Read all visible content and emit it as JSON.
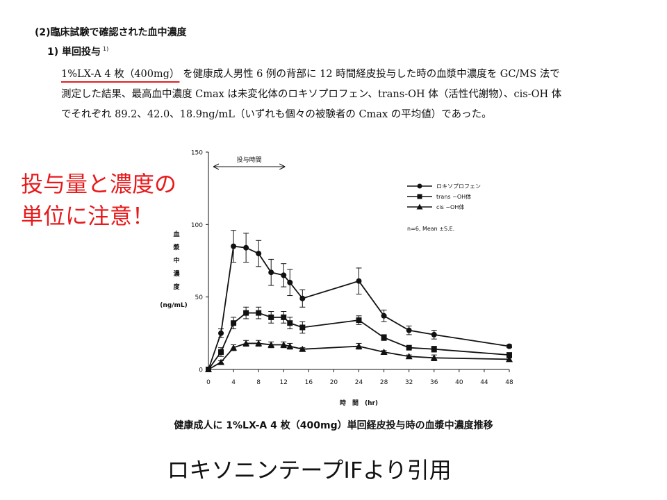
{
  "section_title": "(2)臨床試験で確認された血中濃度",
  "subsection": {
    "label": "1) 単回投与",
    "ref": "1)"
  },
  "paragraph": {
    "line1_highlight": "1%LX-A 4 枚（400mg）",
    "line1_rest": "を健康成人男性 6 例の背部に 12 時間経皮投与した時の血漿中濃度を GC/MS 法で",
    "line2": "測定した結果、最高血中濃度 Cmax は未変化体のロキソプロフェン、trans-OH 体（活性代謝物）、cis-OH 体",
    "line3": "でそれぞれ 89.2、42.0、18.9ng/mL（いずれも個々の被験者の Cmax の平均値）であった。"
  },
  "annotation": {
    "line1": "投与量と濃度の",
    "line2": "単位に注意！"
  },
  "caption": "健康成人に 1%LX-A 4 枚（400mg）単回経皮投与時の血漿中濃度推移",
  "citation": "ロキソニンテープIFより引用",
  "colors": {
    "annotation": "#e8191b",
    "underline": "#e02020",
    "ink": "#111111"
  },
  "chart_data": {
    "type": "line",
    "title": "",
    "xlabel": "時　間　(hr)",
    "ylabel": "血漿中濃度 (ng/mL)",
    "ylabel_chars": [
      "血",
      "漿",
      "中",
      "濃",
      "度"
    ],
    "ylabel_unit": "(ng/mL)",
    "xlim": [
      0,
      48
    ],
    "ylim": [
      0,
      150
    ],
    "x_ticks": [
      0,
      4,
      8,
      12,
      16,
      20,
      24,
      28,
      32,
      36,
      40,
      44,
      48
    ],
    "y_ticks": [
      0,
      50,
      100,
      150
    ],
    "dosing_period": {
      "label": "投与時間",
      "start": 1,
      "end": 12
    },
    "legend_position": "top-right",
    "note": "n=6, Mean ±S.E.",
    "series": [
      {
        "name": "ロキソプロフェン",
        "marker": "circle",
        "x": [
          0,
          2,
          4,
          6,
          8,
          10,
          12,
          13,
          15,
          24,
          28,
          32,
          36,
          48
        ],
        "values": [
          0,
          25,
          85,
          84,
          80,
          67,
          65,
          60,
          49,
          61,
          37,
          27,
          24,
          16
        ],
        "errors": [
          0,
          3,
          11,
          10,
          9,
          9,
          8,
          9,
          6,
          9,
          4,
          3,
          3,
          1
        ]
      },
      {
        "name": "trans −OH体",
        "marker": "square",
        "x": [
          0,
          2,
          4,
          6,
          8,
          10,
          12,
          13,
          15,
          24,
          28,
          32,
          36,
          48
        ],
        "values": [
          0,
          12,
          32,
          39,
          39,
          36,
          36,
          32,
          29,
          34,
          22,
          15,
          14,
          10
        ],
        "errors": [
          0,
          3,
          4,
          4,
          4,
          4,
          4,
          4,
          4,
          3,
          2,
          1,
          2,
          1
        ]
      },
      {
        "name": "cis −OH体",
        "marker": "triangle",
        "x": [
          0,
          2,
          4,
          6,
          8,
          10,
          12,
          13,
          15,
          24,
          28,
          32,
          36,
          48
        ],
        "values": [
          0,
          5,
          15,
          18,
          18,
          17,
          17,
          16,
          14,
          16,
          12,
          9,
          8,
          7
        ],
        "errors": [
          0,
          1,
          2,
          2,
          2,
          2,
          2,
          2,
          1,
          2,
          1,
          1,
          2,
          1
        ]
      }
    ]
  }
}
